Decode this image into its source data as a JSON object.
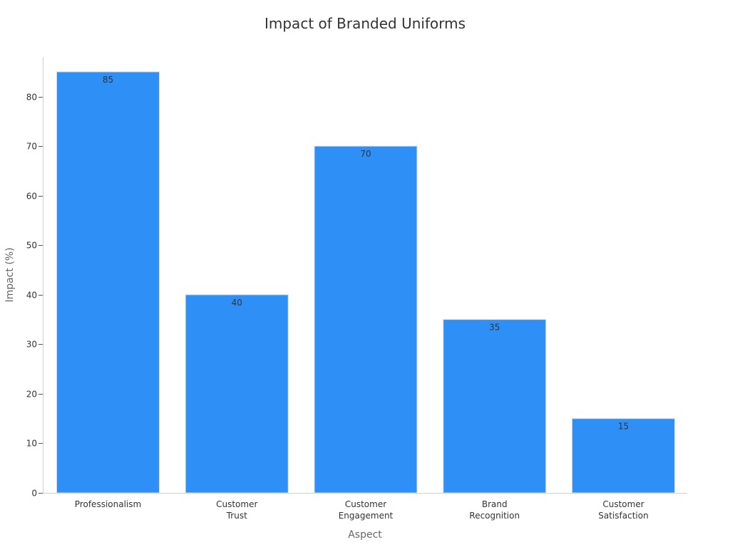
{
  "chart_data": {
    "type": "bar",
    "title": "Impact of Branded Uniforms",
    "xlabel": "Aspect",
    "ylabel": "Impact (%)",
    "categories": [
      [
        "Professionalism"
      ],
      [
        "Customer",
        "Trust"
      ],
      [
        "Customer",
        "Engagement"
      ],
      [
        "Brand",
        "Recognition"
      ],
      [
        "Customer",
        "Satisfaction"
      ]
    ],
    "values": [
      85,
      40,
      70,
      35,
      15
    ],
    "ylim": [
      0,
      88
    ],
    "yticks": [
      0,
      10,
      20,
      30,
      40,
      50,
      60,
      70,
      80
    ],
    "data_labels": true,
    "grid": false,
    "bar_color": "#2e90f7"
  }
}
